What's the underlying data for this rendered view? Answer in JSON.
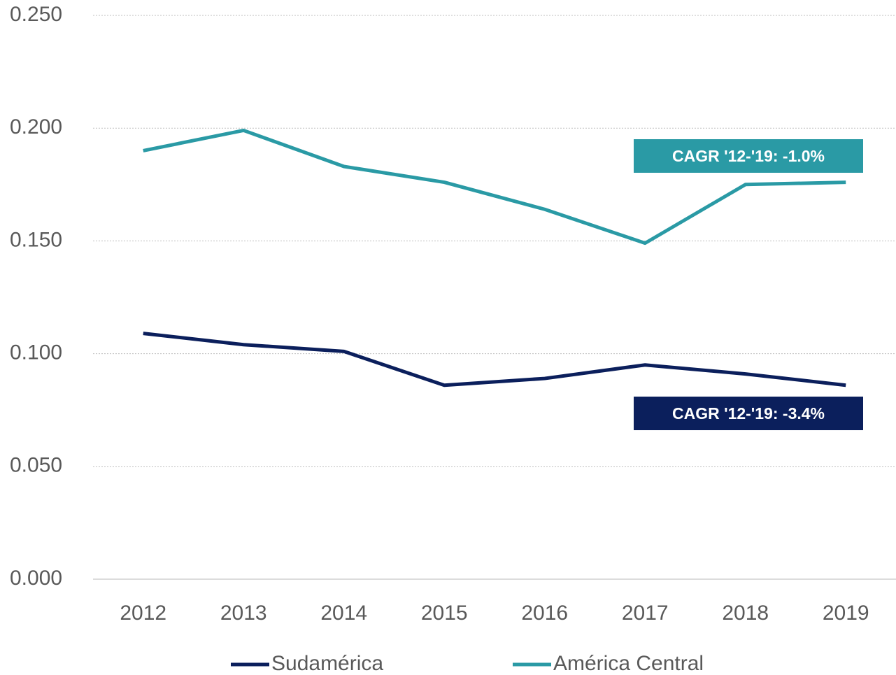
{
  "chart_data": {
    "type": "line",
    "categories": [
      "2012",
      "2013",
      "2014",
      "2015",
      "2016",
      "2017",
      "2018",
      "2019"
    ],
    "series": [
      {
        "name": "Sudamérica",
        "color": "#0b1f5c",
        "values": [
          0.109,
          0.104,
          0.101,
          0.086,
          0.089,
          0.095,
          0.091,
          0.086
        ]
      },
      {
        "name": "América Central",
        "color": "#2a9aa5",
        "values": [
          0.19,
          0.199,
          0.183,
          0.176,
          0.164,
          0.149,
          0.175,
          0.176
        ]
      }
    ],
    "ylim": [
      0,
      0.25
    ],
    "yticks": [
      {
        "value": 0,
        "label": "0.000"
      },
      {
        "value": 0.05,
        "label": "0.050"
      },
      {
        "value": 0.1,
        "label": "0.100"
      },
      {
        "value": 0.15,
        "label": "0.150"
      },
      {
        "value": 0.2,
        "label": "0.200"
      },
      {
        "value": 0.25,
        "label": "0.250"
      }
    ],
    "grid": true,
    "legend": "bottom",
    "annotations": [
      {
        "text": "CAGR '12-'19:  -1.0%",
        "color": "#2a9aa5"
      },
      {
        "text": "CAGR '12-'19:  -3.4%",
        "color": "#0b1f5c"
      }
    ]
  }
}
